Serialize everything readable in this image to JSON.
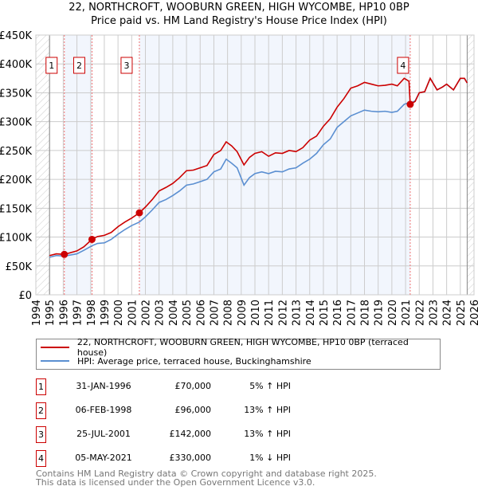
{
  "title": "22, NORTHCROFT, WOOBURN GREEN, HIGH WYCOMBE, HP10 0BP",
  "subtitle": "Price paid vs. HM Land Registry's House Price Index (HPI)",
  "chart_data": {
    "type": "line",
    "xlim": [
      1994,
      2026
    ],
    "ylim": [
      0,
      450000
    ],
    "x_ticks": [
      "1994",
      "1995",
      "1996",
      "1997",
      "1998",
      "1999",
      "2000",
      "2001",
      "2002",
      "2003",
      "2004",
      "2005",
      "2006",
      "2007",
      "2008",
      "2009",
      "2010",
      "2011",
      "2012",
      "2013",
      "2014",
      "2015",
      "2016",
      "2017",
      "2018",
      "2019",
      "2020",
      "2021",
      "2022",
      "2023",
      "2024",
      "2025",
      "2026"
    ],
    "y_ticks": [
      "£0",
      "£50K",
      "£100K",
      "£150K",
      "£200K",
      "£250K",
      "£300K",
      "£350K",
      "£400K",
      "£450K"
    ],
    "hatched_ranges": [
      [
        1994,
        1995
      ],
      [
        2025.5,
        2026
      ]
    ],
    "series": [
      {
        "name": "22, NORTHCROFT, WOOBURN GREEN, HIGH WYCOMBE, HP10 0BP (terraced house)",
        "color": "#cc0000",
        "x": [
          1995,
          1995.5,
          1996.08,
          1997,
          1997.5,
          1998.1,
          1998.5,
          1999,
          1999.5,
          2000,
          2000.5,
          2001,
          2001.56,
          2002,
          2002.5,
          2003,
          2003.5,
          2004,
          2004.5,
          2005,
          2005.5,
          2006,
          2006.5,
          2007,
          2007.5,
          2007.9,
          2008.3,
          2008.7,
          2009.2,
          2009.6,
          2010,
          2010.5,
          2011,
          2011.5,
          2012,
          2012.5,
          2013,
          2013.5,
          2014,
          2014.5,
          2015,
          2015.5,
          2016,
          2016.5,
          2017,
          2017.5,
          2018,
          2018.5,
          2019,
          2019.5,
          2020,
          2020.4,
          2020.9,
          2021.25,
          2021.34,
          2021.7,
          2022,
          2022.4,
          2022.8,
          2023.3,
          2023.7,
          2024,
          2024.5,
          2025,
          2025.3,
          2025.5
        ],
        "y": [
          68000,
          71000,
          70000,
          76000,
          83000,
          96000,
          101000,
          103000,
          108000,
          118000,
          126000,
          133000,
          142000,
          152000,
          165000,
          180000,
          186000,
          193000,
          203000,
          215000,
          216000,
          220000,
          224000,
          243000,
          250000,
          265000,
          258000,
          248000,
          225000,
          238000,
          245000,
          248000,
          240000,
          246000,
          245000,
          250000,
          248000,
          255000,
          268000,
          275000,
          292000,
          305000,
          325000,
          340000,
          358000,
          362000,
          368000,
          365000,
          362000,
          363000,
          365000,
          362000,
          375000,
          370000,
          330000,
          335000,
          350000,
          352000,
          375000,
          355000,
          360000,
          365000,
          355000,
          375000,
          375000,
          367000
        ]
      },
      {
        "name": "HPI: Average price, terraced house, Buckinghamshire",
        "color": "#5b8fd1",
        "x": [
          1995,
          1995.5,
          1996.08,
          1997,
          1997.5,
          1998.1,
          1998.5,
          1999,
          1999.5,
          2000,
          2000.5,
          2001,
          2001.56,
          2002,
          2002.5,
          2003,
          2003.5,
          2004,
          2004.5,
          2005,
          2005.5,
          2006,
          2006.5,
          2007,
          2007.5,
          2007.9,
          2008.3,
          2008.7,
          2009.2,
          2009.6,
          2010,
          2010.5,
          2011,
          2011.5,
          2012,
          2012.5,
          2013,
          2013.5,
          2014,
          2014.5,
          2015,
          2015.5,
          2016,
          2016.5,
          2017,
          2017.5,
          2018,
          2018.5,
          2019,
          2019.5,
          2020,
          2020.4,
          2020.9,
          2021.25,
          2021.34,
          2021.7,
          2022,
          2022.4,
          2022.8,
          2023.3,
          2023.7,
          2024,
          2024.5,
          2025,
          2025.3,
          2025.5
        ],
        "y": [
          65000,
          68000,
          67000,
          71000,
          77000,
          85000,
          89000,
          90000,
          96000,
          105000,
          113000,
          120000,
          126000,
          135000,
          147000,
          160000,
          165000,
          172000,
          180000,
          190000,
          192000,
          196000,
          200000,
          213000,
          218000,
          235000,
          228000,
          220000,
          190000,
          203000,
          210000,
          213000,
          210000,
          214000,
          213000,
          218000,
          220000,
          228000,
          235000,
          245000,
          260000,
          270000,
          290000,
          300000,
          310000,
          315000,
          320000,
          318000,
          317000,
          318000,
          316000,
          318000,
          330000,
          333000,
          332000,
          336000,
          350000,
          352000,
          375000,
          355000,
          360000,
          365000,
          355000,
          375000,
          375000,
          367000
        ]
      }
    ],
    "sales": [
      {
        "label": "1",
        "x": 1996.08,
        "y": 70000,
        "date": "31-JAN-1996",
        "price": "£70,000",
        "hpi": "5% ↑ HPI"
      },
      {
        "label": "2",
        "x": 1998.1,
        "y": 96000,
        "date": "06-FEB-1998",
        "price": "£96,000",
        "hpi": "13% ↑ HPI"
      },
      {
        "label": "3",
        "x": 2001.56,
        "y": 142000,
        "date": "25-JUL-2001",
        "price": "£142,000",
        "hpi": "13% ↑ HPI"
      },
      {
        "label": "4",
        "x": 2021.34,
        "y": 330000,
        "date": "05-MAY-2021",
        "price": "£330,000",
        "hpi": "1% ↓ HPI"
      }
    ]
  },
  "legend": {
    "red": "22, NORTHCROFT, WOOBURN GREEN, HIGH WYCOMBE, HP10 0BP (terraced house)",
    "blue": "HPI: Average price, terraced house, Buckinghamshire"
  },
  "footer": {
    "line1": "Contains HM Land Registry data © Crown copyright and database right 2025.",
    "line2": "This data is licensed under the Open Government Licence v3.0."
  }
}
